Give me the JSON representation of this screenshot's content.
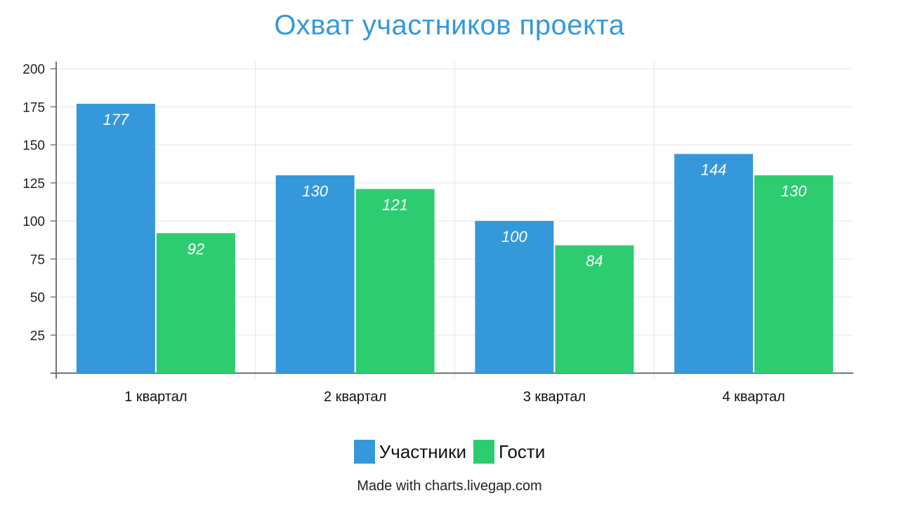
{
  "chart_data": {
    "type": "bar",
    "title": "Охват участников проекта",
    "xlabel": "",
    "ylabel": "",
    "categories": [
      "1 квартал",
      "2 квартал",
      "3 квартал",
      "4 квартал"
    ],
    "series": [
      {
        "name": "Участники",
        "color": "#3598db",
        "values": [
          177,
          130,
          100,
          144
        ]
      },
      {
        "name": "Гости",
        "color": "#2ecc71",
        "values": [
          92,
          121,
          84,
          130
        ]
      }
    ],
    "ylim": [
      0,
      200
    ],
    "yticks": [
      25,
      50,
      75,
      100,
      125,
      150,
      175,
      200
    ],
    "grid": true,
    "legend_position": "bottom-center",
    "data_labels": true
  },
  "footer": {
    "credit": "Made with charts.livegap.com"
  }
}
